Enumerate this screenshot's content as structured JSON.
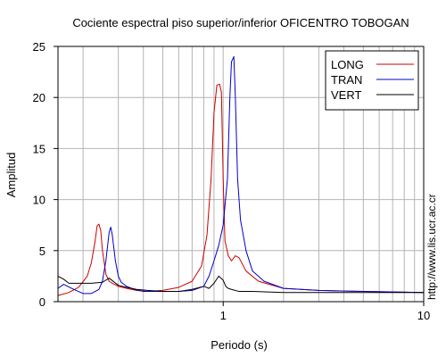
{
  "chart_data": {
    "type": "line",
    "title": "Cociente espectral piso superior/inferior OFICENTRO TOBOGAN",
    "xlabel": "Periodo (s)",
    "ylabel": "Amplitud",
    "x_scale": "log",
    "xlim": [
      0.15,
      10
    ],
    "ylim": [
      0,
      25
    ],
    "x_ticks": [
      1,
      10
    ],
    "y_ticks": [
      0,
      5,
      10,
      15,
      20,
      25
    ],
    "grid": true,
    "legend_position": "top-right",
    "side_note": "http://www.lis.ucr.ac.cr",
    "series": [
      {
        "name": "LONG",
        "color": "#cc0000",
        "x": [
          0.15,
          0.17,
          0.19,
          0.21,
          0.22,
          0.23,
          0.235,
          0.24,
          0.245,
          0.25,
          0.26,
          0.27,
          0.28,
          0.3,
          0.33,
          0.37,
          0.42,
          0.5,
          0.6,
          0.7,
          0.78,
          0.83,
          0.87,
          0.9,
          0.93,
          0.96,
          0.98,
          1.0,
          1.02,
          1.06,
          1.1,
          1.15,
          1.2,
          1.3,
          1.5,
          2.0,
          3.0,
          5.0,
          10.0
        ],
        "y": [
          0.6,
          0.9,
          1.4,
          2.5,
          3.8,
          6.0,
          7.4,
          7.6,
          7.0,
          5.0,
          2.7,
          2.0,
          1.8,
          1.5,
          1.3,
          1.1,
          1.0,
          1.1,
          1.4,
          2.0,
          3.5,
          6.5,
          12.0,
          18.5,
          21.2,
          21.3,
          20.5,
          12.0,
          6.0,
          4.5,
          4.0,
          4.5,
          4.3,
          3.0,
          2.0,
          1.3,
          1.1,
          1.0,
          0.9
        ]
      },
      {
        "name": "TRAN",
        "color": "#0000cc",
        "x": [
          0.15,
          0.16,
          0.18,
          0.2,
          0.22,
          0.24,
          0.25,
          0.26,
          0.27,
          0.275,
          0.28,
          0.29,
          0.3,
          0.31,
          0.33,
          0.36,
          0.4,
          0.45,
          0.5,
          0.6,
          0.7,
          0.8,
          0.85,
          0.9,
          0.95,
          1.0,
          1.05,
          1.08,
          1.1,
          1.13,
          1.15,
          1.18,
          1.22,
          1.3,
          1.4,
          1.6,
          2.0,
          3.0,
          5.0,
          10.0
        ],
        "y": [
          1.3,
          1.7,
          1.2,
          0.8,
          0.8,
          1.2,
          2.0,
          4.0,
          6.8,
          7.3,
          6.5,
          4.0,
          2.5,
          1.9,
          1.5,
          1.2,
          1.0,
          1.0,
          1.0,
          1.0,
          1.1,
          1.5,
          2.5,
          4.0,
          5.5,
          7.5,
          12.0,
          20.0,
          23.5,
          24.0,
          20.0,
          12.0,
          8.0,
          5.0,
          3.0,
          2.0,
          1.3,
          1.1,
          1.0,
          0.9
        ]
      },
      {
        "name": "VERT",
        "color": "#000000",
        "x": [
          0.15,
          0.16,
          0.17,
          0.19,
          0.22,
          0.25,
          0.27,
          0.3,
          0.33,
          0.37,
          0.42,
          0.5,
          0.6,
          0.7,
          0.8,
          0.85,
          0.9,
          0.95,
          1.0,
          1.03,
          1.06,
          1.1,
          1.2,
          1.4,
          2.0,
          3.0,
          5.0,
          10.0
        ],
        "y": [
          2.5,
          2.2,
          1.8,
          1.8,
          1.8,
          1.9,
          2.3,
          1.6,
          1.4,
          1.2,
          1.1,
          1.0,
          1.0,
          1.2,
          1.5,
          1.3,
          1.8,
          2.5,
          2.1,
          1.5,
          1.3,
          1.2,
          1.0,
          1.0,
          0.9,
          0.9,
          0.9,
          0.9
        ]
      }
    ]
  }
}
